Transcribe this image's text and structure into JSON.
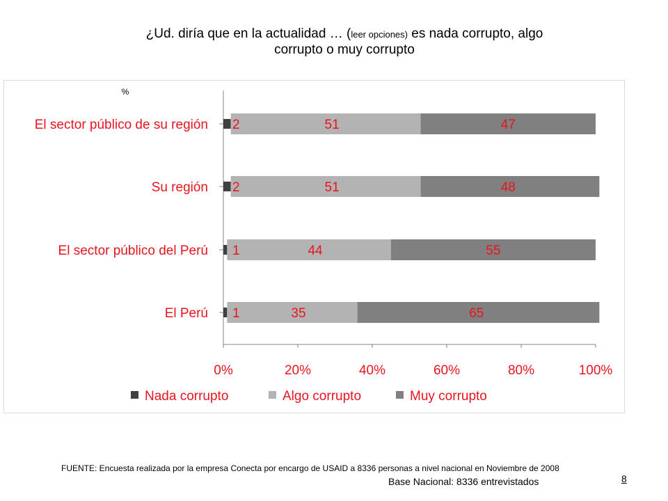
{
  "title": {
    "prefix": "¿Ud. diría que en la actualidad … (",
    "small": "leer opciones)",
    "suffix": " es nada corrupto, algo",
    "line2": "corrupto o muy corrupto"
  },
  "chart_data": {
    "type": "bar",
    "orientation": "horizontal",
    "stacked": "percent",
    "unit_label": "%",
    "categories": [
      "El sector público de su región",
      "Su región",
      "El sector público del Perú",
      "El Perú"
    ],
    "series": [
      {
        "name": "Nada corrupto",
        "color": "#404040",
        "values": [
          2,
          2,
          1,
          1
        ]
      },
      {
        "name": "Algo corrupto",
        "color": "#b3b3b3",
        "values": [
          51,
          51,
          44,
          35
        ]
      },
      {
        "name": "Muy corrupto",
        "color": "#808080",
        "values": [
          47,
          48,
          55,
          65
        ]
      }
    ],
    "xticks": [
      "0%",
      "20%",
      "40%",
      "60%",
      "80%",
      "100%"
    ],
    "xlim": [
      0,
      100
    ],
    "label_color": "#e8141e",
    "legend_position": "bottom"
  },
  "footer": {
    "source": "FUENTE: Encuesta realizada por la empresa Conecta por encargo de USAID a 8336 personas a nivel nacional en Noviembre de 2008",
    "base": "Base Nacional: 8336 entrevistados",
    "page": "8"
  }
}
